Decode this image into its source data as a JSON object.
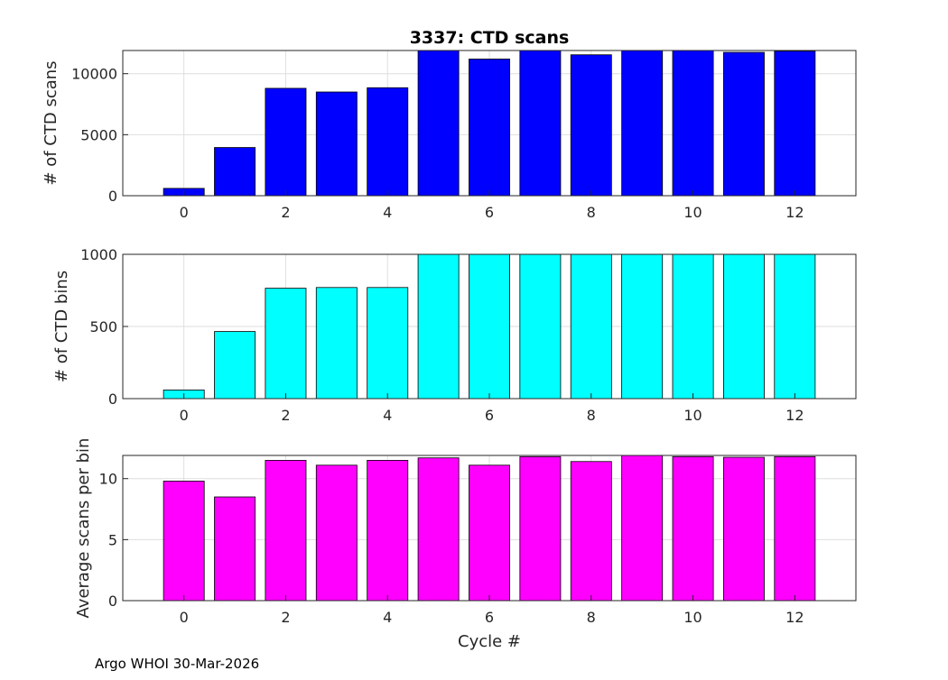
{
  "figure": {
    "title": "3337: CTD scans",
    "footer": "Argo WHOI 30-Mar-2026"
  },
  "chart_data": [
    {
      "type": "bar",
      "title": "3337: CTD scans",
      "xlabel": "",
      "ylabel": "# of CTD scans",
      "x": [
        0,
        1,
        2,
        3,
        4,
        5,
        6,
        7,
        8,
        9,
        10,
        11,
        12
      ],
      "values": [
        600,
        3950,
        8800,
        8500,
        8850,
        11900,
        11200,
        11900,
        11550,
        11900,
        11900,
        11750,
        11850
      ],
      "xlim": [
        -1.2,
        13.2
      ],
      "ylim": [
        0,
        11900
      ],
      "xticks": [
        0,
        2,
        4,
        6,
        8,
        10,
        12
      ],
      "yticks": [
        0,
        5000,
        10000
      ],
      "grid": true,
      "color": "#0000ff"
    },
    {
      "type": "bar",
      "title": "",
      "xlabel": "",
      "ylabel": "# of CTD bins",
      "x": [
        0,
        1,
        2,
        3,
        4,
        5,
        6,
        7,
        8,
        9,
        10,
        11,
        12
      ],
      "values": [
        60,
        465,
        765,
        770,
        770,
        1000,
        1000,
        1000,
        1000,
        1000,
        1000,
        1000,
        1000
      ],
      "xlim": [
        -1.2,
        13.2
      ],
      "ylim": [
        0,
        1000
      ],
      "xticks": [
        0,
        2,
        4,
        6,
        8,
        10,
        12
      ],
      "yticks": [
        0,
        500,
        1000
      ],
      "grid": true,
      "color": "#00ffff"
    },
    {
      "type": "bar",
      "title": "",
      "xlabel": "Cycle #",
      "ylabel": "Average scans per bin",
      "x": [
        0,
        1,
        2,
        3,
        4,
        5,
        6,
        7,
        8,
        9,
        10,
        11,
        12
      ],
      "values": [
        9.8,
        8.5,
        11.5,
        11.1,
        11.5,
        11.7,
        11.1,
        11.8,
        11.4,
        11.9,
        11.8,
        11.75,
        11.8
      ],
      "xlim": [
        -1.2,
        13.2
      ],
      "ylim": [
        0,
        11.9
      ],
      "xticks": [
        0,
        2,
        4,
        6,
        8,
        10,
        12
      ],
      "yticks": [
        0,
        5,
        10
      ],
      "grid": true,
      "color": "#ff00ff"
    }
  ]
}
